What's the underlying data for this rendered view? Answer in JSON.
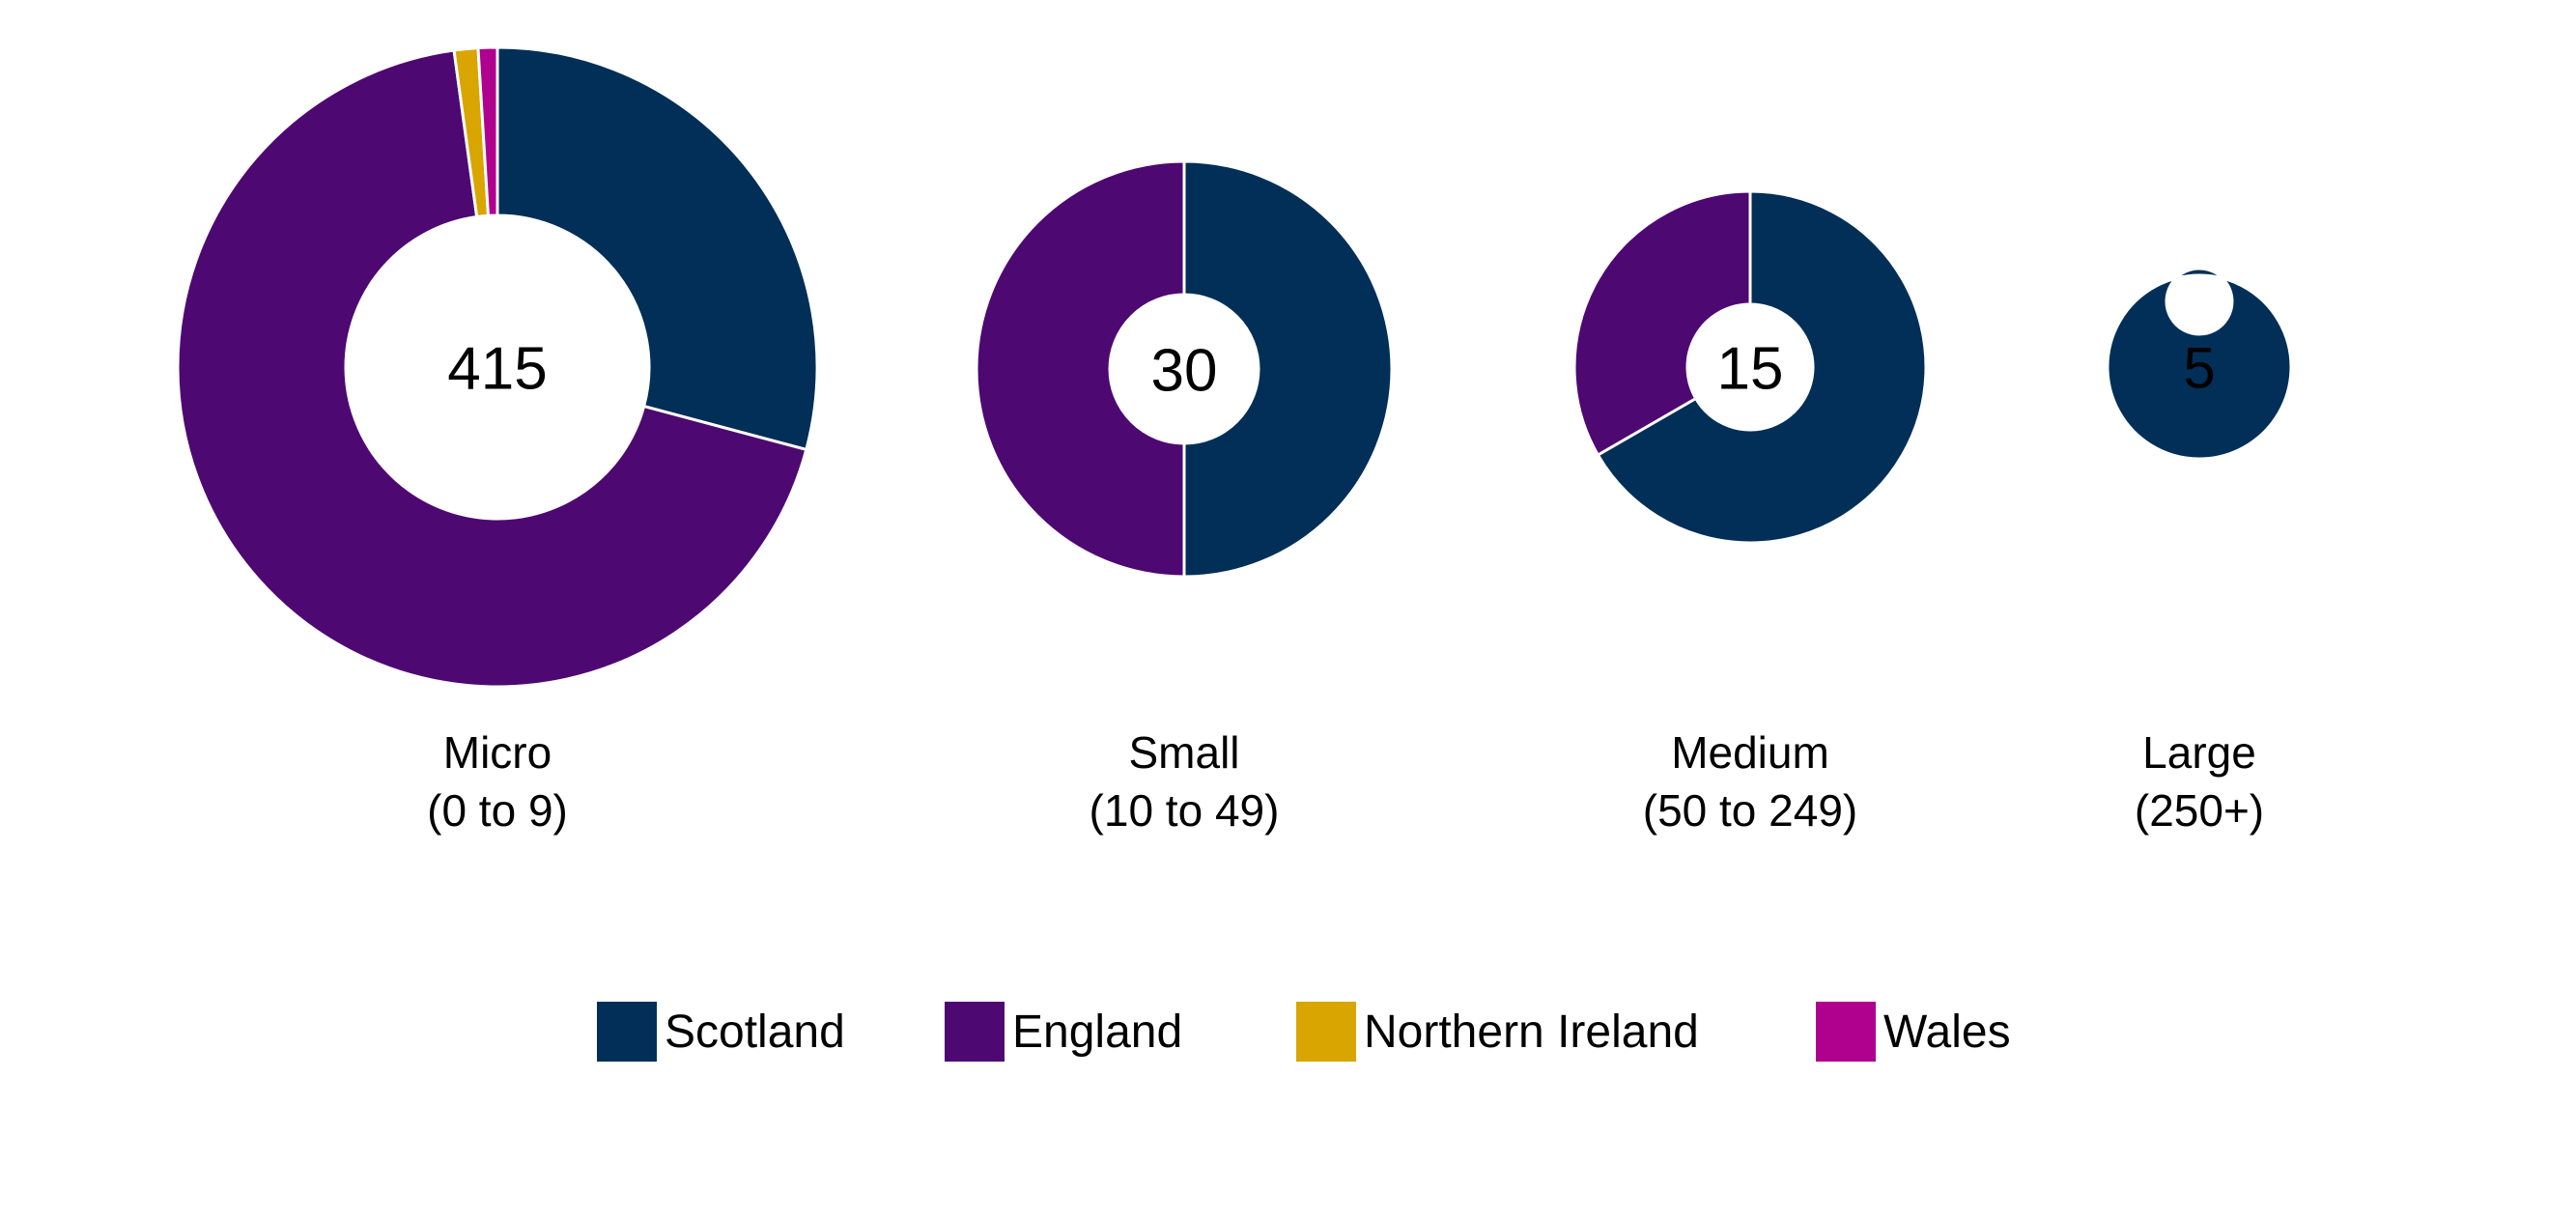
{
  "chart_data": {
    "type": "pie",
    "subtype": "donut",
    "legend_placement": "bottom",
    "series_colors": {
      "Scotland": "#012f57",
      "England": "#4e0872",
      "Northern Ireland": "#d9a500",
      "Wales": "#b0008e"
    },
    "legend": [
      "Scotland",
      "England",
      "Northern Ireland",
      "Wales"
    ],
    "charts": [
      {
        "category": "Micro",
        "range": "(0 to 9)",
        "total": "415",
        "slices": [
          {
            "name": "Scotland",
            "value": 121
          },
          {
            "name": "England",
            "value": 285
          },
          {
            "name": "Northern Ireland",
            "value": 5
          },
          {
            "name": "Wales",
            "value": 4
          }
        ]
      },
      {
        "category": "Small",
        "range": "(10 to 49)",
        "total": "30",
        "slices": [
          {
            "name": "Scotland",
            "value": 15
          },
          {
            "name": "England",
            "value": 15
          }
        ]
      },
      {
        "category": "Medium",
        "range": "(50 to 249)",
        "total": "15",
        "slices": [
          {
            "name": "Scotland",
            "value": 10
          },
          {
            "name": "England",
            "value": 5
          }
        ]
      },
      {
        "category": "Large",
        "range": "(250+)",
        "total": "5",
        "slices": [
          {
            "name": "Scotland",
            "value": 5
          }
        ]
      }
    ]
  }
}
